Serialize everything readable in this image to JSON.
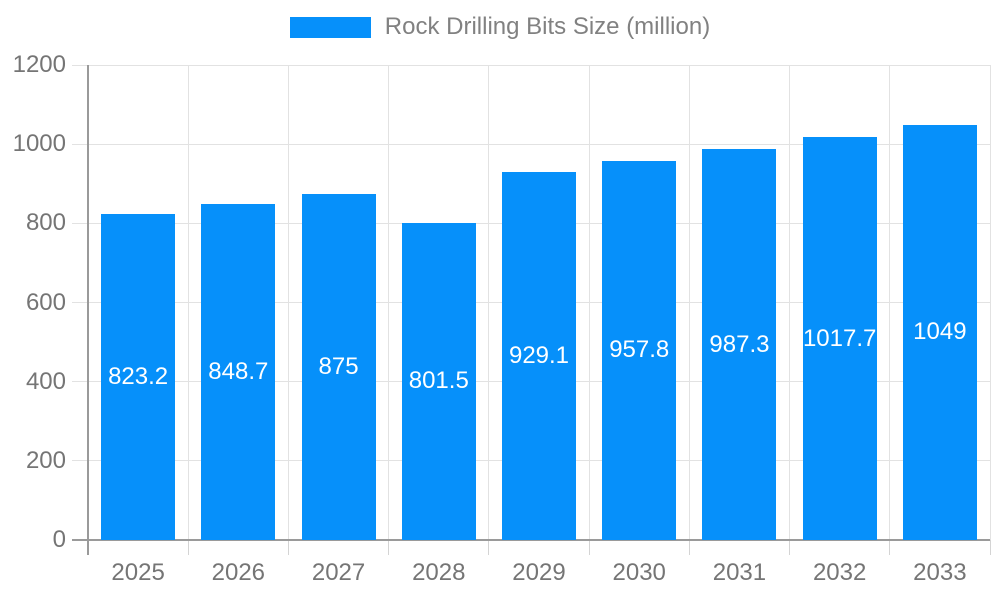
{
  "chart_data": {
    "type": "bar",
    "title": "Rock Drilling Bits Size (million)",
    "categories": [
      "2025",
      "2026",
      "2027",
      "2028",
      "2029",
      "2030",
      "2031",
      "2032",
      "2033"
    ],
    "values": [
      823.2,
      848.7,
      875,
      801.5,
      929.1,
      957.8,
      987.3,
      1017.7,
      1049
    ],
    "value_labels": [
      "823.2",
      "848.7",
      "875",
      "801.5",
      "929.1",
      "957.8",
      "987.3",
      "1017.7",
      "1049"
    ],
    "xlabel": "",
    "ylabel": "",
    "ylim": [
      0,
      1200
    ],
    "yticks": [
      0,
      200,
      400,
      600,
      800,
      1000,
      1200
    ],
    "ytick_labels": [
      "0",
      "200",
      "400",
      "600",
      "800",
      "1000",
      "1200"
    ],
    "grid": true,
    "legend_position": "top",
    "colors": {
      "bar": "#0690FA",
      "bar_label_text": "#ffffff",
      "legend_text": "#818181",
      "axis_text": "#757575",
      "gridline": "#e2e2e2",
      "axis_line": "#9a9a9a",
      "tick": "#d4d4d4",
      "background": "#ffffff"
    }
  }
}
